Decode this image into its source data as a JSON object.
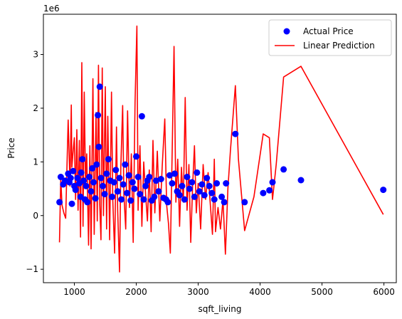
{
  "chart_data": {
    "type": "scatter",
    "xlabel": "sqft_living",
    "ylabel": "Price",
    "y_offset_label": "1e6",
    "xlim": [
      500,
      6200
    ],
    "ylim": [
      -1.25,
      3.75
    ],
    "xticks": [
      1000,
      2000,
      3000,
      4000,
      5000,
      6000
    ],
    "yticks": [
      -1,
      0,
      1,
      2,
      3
    ],
    "grid": false,
    "legend_position": "upper right",
    "series": [
      {
        "name": "Actual Price",
        "type": "scatter",
        "color": "#0000ff",
        "points": [
          [
            760,
            0.25
          ],
          [
            780,
            0.72
          ],
          [
            820,
            0.58
          ],
          [
            850,
            0.65
          ],
          [
            900,
            0.78
          ],
          [
            920,
            0.62
          ],
          [
            940,
            0.7
          ],
          [
            960,
            0.22
          ],
          [
            980,
            0.83
          ],
          [
            1000,
            0.55
          ],
          [
            1020,
            0.48
          ],
          [
            1050,
            0.7
          ],
          [
            1080,
            0.6
          ],
          [
            1100,
            0.35
          ],
          [
            1110,
            0.8
          ],
          [
            1130,
            1.05
          ],
          [
            1150,
            0.65
          ],
          [
            1170,
            0.3
          ],
          [
            1190,
            0.55
          ],
          [
            1210,
            0.25
          ],
          [
            1240,
            0.72
          ],
          [
            1270,
            0.45
          ],
          [
            1290,
            0.88
          ],
          [
            1310,
            0.62
          ],
          [
            1340,
            0.32
          ],
          [
            1360,
            0.95
          ],
          [
            1380,
            1.87
          ],
          [
            1395,
            1.28
          ],
          [
            1410,
            2.4
          ],
          [
            1430,
            0.7
          ],
          [
            1460,
            0.55
          ],
          [
            1490,
            0.4
          ],
          [
            1520,
            0.78
          ],
          [
            1550,
            1.05
          ],
          [
            1580,
            0.65
          ],
          [
            1610,
            0.35
          ],
          [
            1640,
            0.62
          ],
          [
            1670,
            0.85
          ],
          [
            1700,
            0.45
          ],
          [
            1730,
            0.7
          ],
          [
            1760,
            0.3
          ],
          [
            1790,
            0.58
          ],
          [
            1820,
            0.95
          ],
          [
            1850,
            0.42
          ],
          [
            1880,
            0.75
          ],
          [
            1910,
            0.28
          ],
          [
            1940,
            0.62
          ],
          [
            1970,
            0.5
          ],
          [
            2000,
            1.1
          ],
          [
            2030,
            0.72
          ],
          [
            2060,
            0.4
          ],
          [
            2090,
            1.85
          ],
          [
            2120,
            0.3
          ],
          [
            2150,
            0.55
          ],
          [
            2180,
            0.65
          ],
          [
            2210,
            0.72
          ],
          [
            2250,
            0.28
          ],
          [
            2290,
            0.35
          ],
          [
            2320,
            0.65
          ],
          [
            2360,
            0.45
          ],
          [
            2400,
            0.68
          ],
          [
            2440,
            0.33
          ],
          [
            2480,
            0.3
          ],
          [
            2510,
            0.25
          ],
          [
            2540,
            0.75
          ],
          [
            2580,
            0.6
          ],
          [
            2620,
            0.78
          ],
          [
            2660,
            0.45
          ],
          [
            2700,
            0.38
          ],
          [
            2740,
            0.55
          ],
          [
            2780,
            0.3
          ],
          [
            2820,
            0.72
          ],
          [
            2860,
            0.5
          ],
          [
            2900,
            0.62
          ],
          [
            2940,
            0.35
          ],
          [
            2980,
            0.8
          ],
          [
            3020,
            0.45
          ],
          [
            3060,
            0.58
          ],
          [
            3100,
            0.38
          ],
          [
            3140,
            0.7
          ],
          [
            3180,
            0.55
          ],
          [
            3220,
            0.42
          ],
          [
            3260,
            0.3
          ],
          [
            3300,
            0.6
          ],
          [
            3380,
            0.35
          ],
          [
            3420,
            0.25
          ],
          [
            3450,
            0.6
          ],
          [
            3600,
            1.52
          ],
          [
            3750,
            0.25
          ],
          [
            4050,
            0.42
          ],
          [
            4150,
            0.47
          ],
          [
            4200,
            0.62
          ],
          [
            4380,
            0.86
          ],
          [
            4660,
            0.66
          ],
          [
            5990,
            0.48
          ]
        ]
      },
      {
        "name": "Linear Prediction",
        "type": "line",
        "color": "#ff0000",
        "points": [
          [
            760,
            -0.5
          ],
          [
            780,
            0.7
          ],
          [
            800,
            0.2
          ],
          [
            830,
            0.05
          ],
          [
            860,
            -0.05
          ],
          [
            880,
            0.9
          ],
          [
            900,
            1.78
          ],
          [
            930,
            0.55
          ],
          [
            950,
            2.06
          ],
          [
            960,
            0.9
          ],
          [
            980,
            1.2
          ],
          [
            1000,
            1.45
          ],
          [
            1020,
            0.3
          ],
          [
            1040,
            1.6
          ],
          [
            1060,
            0.1
          ],
          [
            1080,
            1.4
          ],
          [
            1100,
            -0.4
          ],
          [
            1120,
            2.85
          ],
          [
            1140,
            -0.2
          ],
          [
            1160,
            2.3
          ],
          [
            1180,
            0.6
          ],
          [
            1200,
            1.15
          ],
          [
            1230,
            -0.55
          ],
          [
            1250,
            1.3
          ],
          [
            1270,
            -0.62
          ],
          [
            1300,
            2.55
          ],
          [
            1320,
            -0.35
          ],
          [
            1350,
            1.92
          ],
          [
            1370,
            -0.1
          ],
          [
            1390,
            2.8
          ],
          [
            1410,
            0.2
          ],
          [
            1430,
            -0.45
          ],
          [
            1450,
            2.75
          ],
          [
            1470,
            0.0
          ],
          [
            1500,
            2.4
          ],
          [
            1520,
            -0.25
          ],
          [
            1540,
            1.85
          ],
          [
            1570,
            -0.45
          ],
          [
            1600,
            2.3
          ],
          [
            1620,
            0.3
          ],
          [
            1650,
            -0.7
          ],
          [
            1680,
            1.65
          ],
          [
            1700,
            0.1
          ],
          [
            1730,
            -1.05
          ],
          [
            1750,
            0.9
          ],
          [
            1780,
            2.05
          ],
          [
            1800,
            0.4
          ],
          [
            1830,
            -0.25
          ],
          [
            1860,
            1.95
          ],
          [
            1890,
            0.15
          ],
          [
            1920,
            1.15
          ],
          [
            1950,
            -0.5
          ],
          [
            1980,
            2.1
          ],
          [
            2010,
            3.53
          ],
          [
            2030,
            0.1
          ],
          [
            2060,
            1.3
          ],
          [
            2090,
            -0.2
          ],
          [
            2120,
            1.0
          ],
          [
            2150,
            0.4
          ],
          [
            2180,
            -0.1
          ],
          [
            2210,
            0.85
          ],
          [
            2240,
            -0.3
          ],
          [
            2270,
            1.4
          ],
          [
            2300,
            0.05
          ],
          [
            2340,
            1.2
          ],
          [
            2380,
            -0.1
          ],
          [
            2420,
            0.95
          ],
          [
            2460,
            1.8
          ],
          [
            2490,
            0.2
          ],
          [
            2520,
            -0.15
          ],
          [
            2550,
            -0.7
          ],
          [
            2580,
            1.2
          ],
          [
            2610,
            3.15
          ],
          [
            2640,
            0.25
          ],
          [
            2670,
            1.05
          ],
          [
            2700,
            -0.2
          ],
          [
            2730,
            0.9
          ],
          [
            2760,
            0.25
          ],
          [
            2790,
            2.2
          ],
          [
            2820,
            0.1
          ],
          [
            2850,
            0.95
          ],
          [
            2880,
            -0.5
          ],
          [
            2910,
            0.55
          ],
          [
            2940,
            1.3
          ],
          [
            2970,
            0.05
          ],
          [
            3000,
            0.6
          ],
          [
            3040,
            -0.25
          ],
          [
            3080,
            0.95
          ],
          [
            3120,
            0.3
          ],
          [
            3160,
            0.8
          ],
          [
            3200,
            0.15
          ],
          [
            3230,
            -0.35
          ],
          [
            3260,
            1.05
          ],
          [
            3280,
            -0.3
          ],
          [
            3320,
            0.15
          ],
          [
            3360,
            -0.25
          ],
          [
            3400,
            0.3
          ],
          [
            3440,
            -0.72
          ],
          [
            3480,
            0.5
          ],
          [
            3520,
            1.2
          ],
          [
            3600,
            2.42
          ],
          [
            3650,
            1.05
          ],
          [
            3750,
            -0.28
          ],
          [
            3900,
            0.35
          ],
          [
            4050,
            1.52
          ],
          [
            4150,
            1.45
          ],
          [
            4200,
            0.3
          ],
          [
            4260,
            0.95
          ],
          [
            4380,
            2.58
          ],
          [
            4660,
            2.78
          ],
          [
            5990,
            0.02
          ]
        ]
      }
    ]
  }
}
